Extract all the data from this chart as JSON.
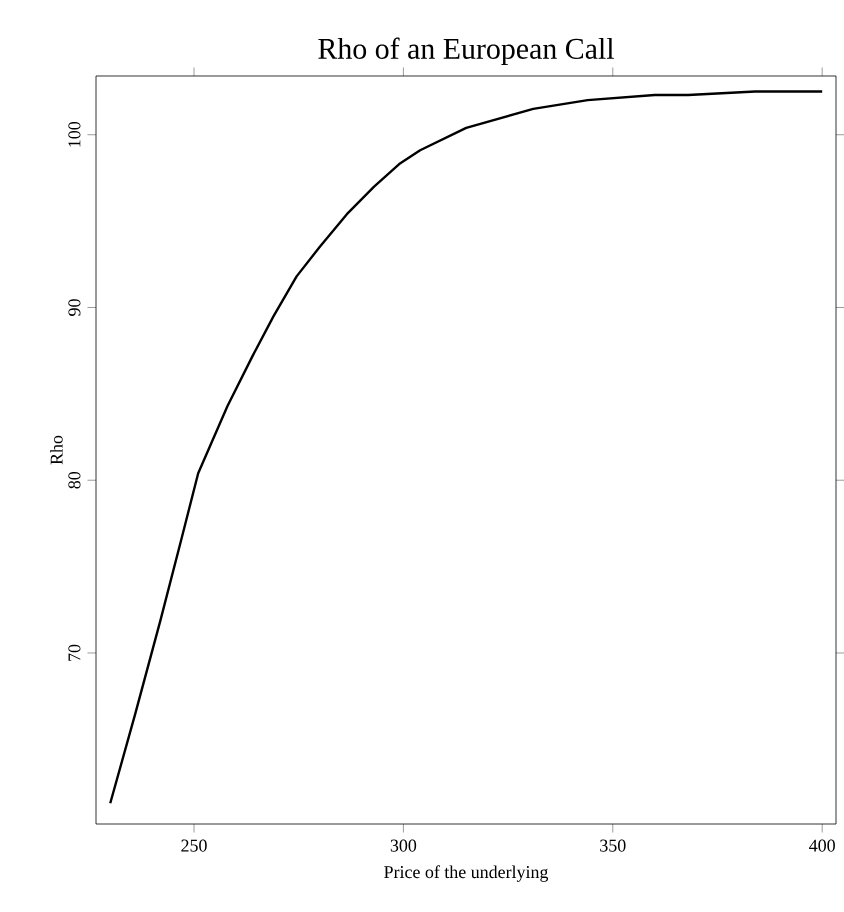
{
  "chart_data": {
    "type": "line",
    "title": "Rho of an European Call",
    "xlabel": "Price of the underlying",
    "ylabel": "Rho",
    "xlim": [
      226.6,
      403.3
    ],
    "ylim": [
      60.1,
      103.4
    ],
    "xticks": [
      250,
      300,
      350,
      400
    ],
    "yticks": [
      70,
      80,
      90,
      100
    ],
    "series": [
      {
        "color": "#000000",
        "x": [
          230,
          236,
          242,
          247,
          251,
          258,
          264,
          269,
          274.5,
          280,
          286.5,
          293,
          299,
          304,
          315,
          331,
          344,
          360,
          368,
          384,
          400
        ],
        "values": [
          61.3,
          66.5,
          71.9,
          76.6,
          80.4,
          84.3,
          87.2,
          89.5,
          91.8,
          93.5,
          95.4,
          97.0,
          98.3,
          99.1,
          100.4,
          101.5,
          102.0,
          102.3,
          102.3,
          102.5,
          102.5
        ]
      }
    ],
    "grid": false,
    "marker": "none",
    "line_style": "solid"
  }
}
